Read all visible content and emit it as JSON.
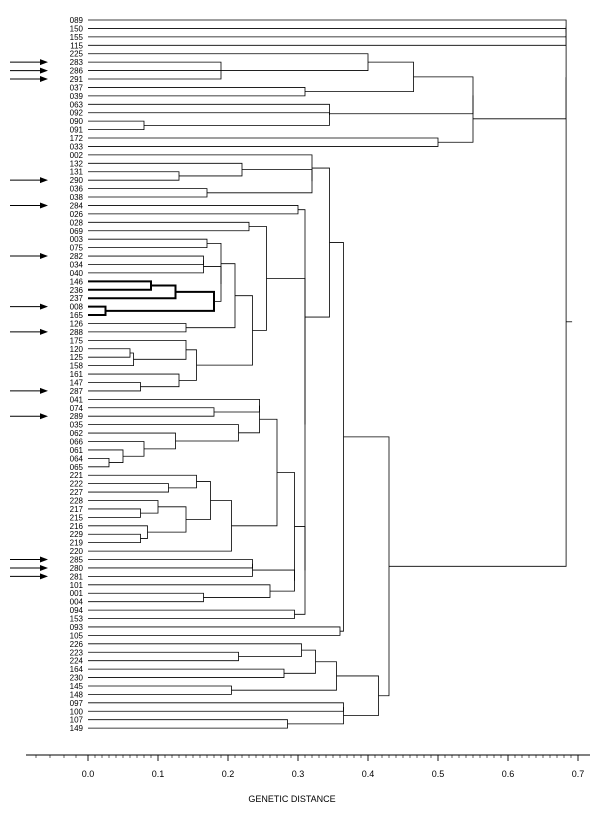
{
  "figure": {
    "axis_label": "GENETIC DISTANCE",
    "ticks": [
      "0.0",
      "0.1",
      "0.2",
      "0.3",
      "0.4",
      "0.5",
      "0.6",
      "0.7"
    ]
  },
  "leaves": [
    "089",
    "150",
    "155",
    "115",
    "225",
    "283",
    "286",
    "291",
    "037",
    "039",
    "063",
    "092",
    "090",
    "091",
    "172",
    "033",
    "002",
    "132",
    "131",
    "290",
    "036",
    "038",
    "284",
    "026",
    "028",
    "069",
    "003",
    "075",
    "282",
    "034",
    "040",
    "146",
    "236",
    "237",
    "008",
    "165",
    "126",
    "288",
    "175",
    "120",
    "125",
    "158",
    "161",
    "147",
    "287",
    "041",
    "074",
    "289",
    "035",
    "062",
    "066",
    "061",
    "064",
    "065",
    "221",
    "222",
    "227",
    "228",
    "217",
    "215",
    "216",
    "229",
    "219",
    "220",
    "285",
    "280",
    "281",
    "101",
    "001",
    "004",
    "094",
    "153",
    "093",
    "105",
    "226",
    "223",
    "224",
    "164",
    "230",
    "145",
    "148",
    "097",
    "100",
    "107",
    "149"
  ],
  "arrows": [
    "283",
    "286",
    "291",
    "290",
    "284",
    "282",
    "008",
    "288",
    "287",
    "289",
    "285",
    "280",
    "281"
  ],
  "highlighted_leaves": [
    "034",
    "040",
    "146",
    "236",
    "237",
    "008",
    "165"
  ]
}
